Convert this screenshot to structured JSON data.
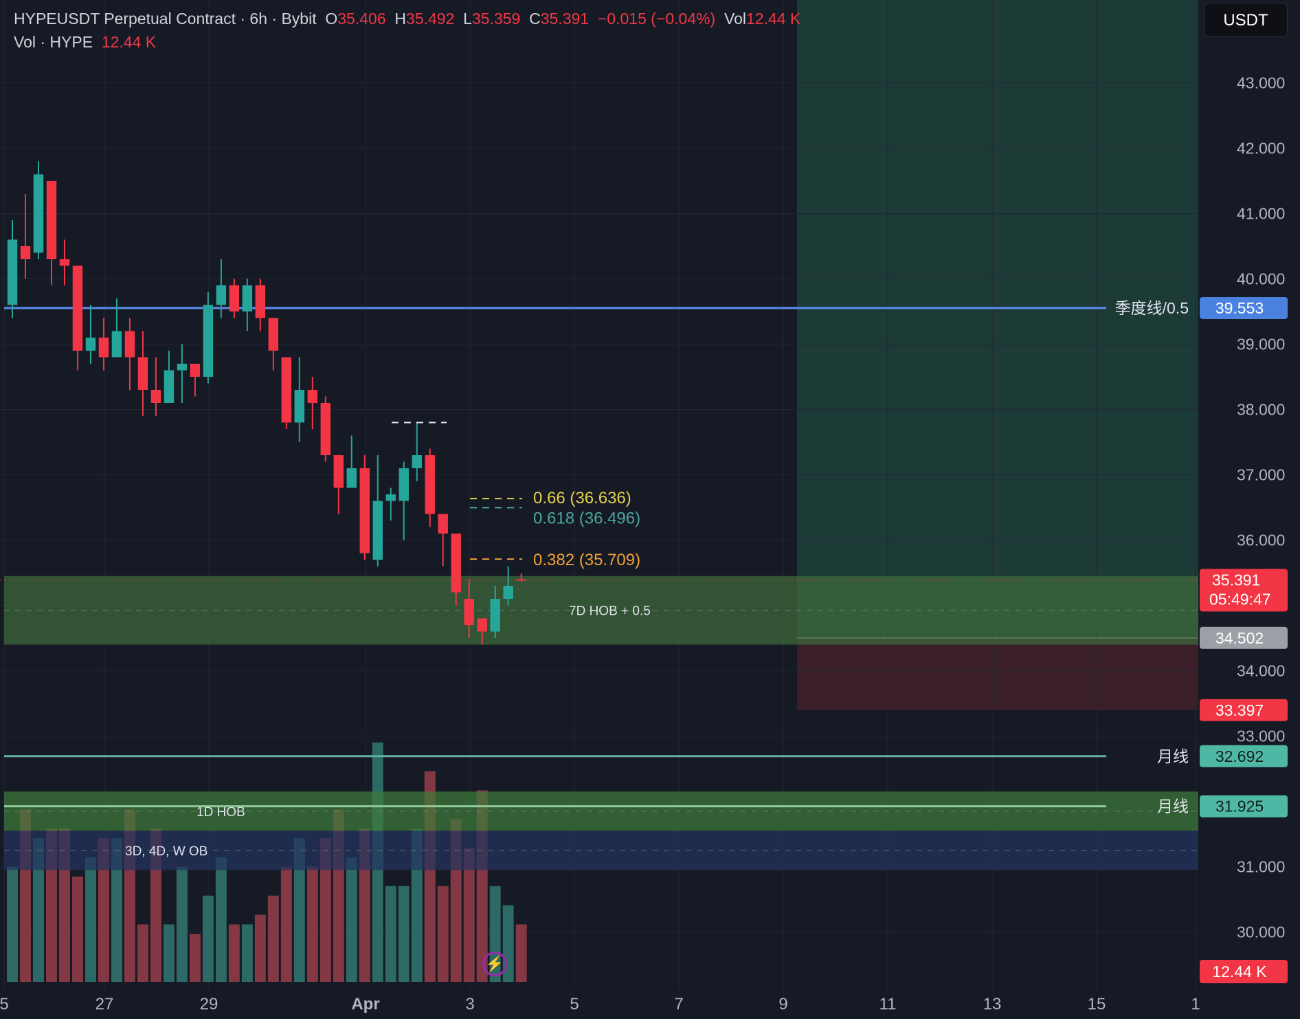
{
  "header": {
    "symbol": "HYPEUSDT Perpetual Contract · 6h · Bybit",
    "o_label": "O",
    "o_value": "35.406",
    "h_label": "H",
    "h_value": "35.492",
    "l_label": "L",
    "l_value": "35.359",
    "c_label": "C",
    "c_value": "35.391",
    "change": "−0.015 (−0.04%)",
    "vol_label": "Vol",
    "vol_value": "12.44 K",
    "vol_row_label": "Vol · HYPE",
    "vol_row_value": "12.44 K"
  },
  "currency_button": "USDT",
  "chart_data": {
    "type": "candlestick",
    "timeframe": "6h",
    "ylim": [
      29.2,
      44.3
    ],
    "y_ticks": [
      "43.000",
      "42.000",
      "41.000",
      "40.000",
      "39.000",
      "38.000",
      "37.000",
      "36.000",
      "35.000",
      "34.000",
      "33.000",
      "31.000",
      "30.000"
    ],
    "x_ticks": [
      "5",
      "27",
      "29",
      "Apr",
      "3",
      "5",
      "7",
      "9",
      "11",
      "13",
      "15",
      "1"
    ],
    "candles": [
      [
        39.6,
        40.6,
        40.9,
        39.4
      ],
      [
        40.5,
        40.3,
        41.3,
        40.0
      ],
      [
        40.4,
        41.6,
        41.8,
        40.3
      ],
      [
        41.5,
        40.3,
        41.5,
        39.9
      ],
      [
        40.3,
        40.2,
        40.6,
        39.9
      ],
      [
        40.2,
        38.9,
        40.2,
        38.6
      ],
      [
        38.9,
        39.1,
        39.6,
        38.7
      ],
      [
        39.1,
        38.8,
        39.4,
        38.6
      ],
      [
        38.8,
        39.2,
        39.7,
        38.8
      ],
      [
        39.2,
        38.8,
        39.4,
        38.3
      ],
      [
        38.8,
        38.3,
        39.2,
        37.9
      ],
      [
        38.3,
        38.1,
        38.8,
        37.9
      ],
      [
        38.1,
        38.6,
        38.9,
        38.1
      ],
      [
        38.6,
        38.7,
        39.0,
        38.1
      ],
      [
        38.7,
        38.5,
        38.7,
        38.2
      ],
      [
        38.5,
        39.6,
        39.8,
        38.4
      ],
      [
        39.6,
        39.9,
        40.3,
        39.4
      ],
      [
        39.9,
        39.5,
        40.0,
        39.4
      ],
      [
        39.5,
        39.9,
        40.0,
        39.2
      ],
      [
        39.9,
        39.4,
        40.0,
        39.2
      ],
      [
        39.4,
        38.9,
        39.3,
        38.6
      ],
      [
        38.8,
        37.8,
        38.8,
        37.7
      ],
      [
        37.8,
        38.3,
        38.8,
        37.5
      ],
      [
        38.3,
        38.1,
        38.5,
        37.7
      ],
      [
        38.1,
        37.3,
        38.2,
        37.2
      ],
      [
        37.3,
        36.8,
        37.3,
        36.4
      ],
      [
        36.8,
        37.1,
        37.6,
        36.9
      ],
      [
        37.1,
        35.8,
        37.3,
        35.7
      ],
      [
        35.7,
        36.6,
        37.3,
        35.6
      ],
      [
        36.6,
        36.7,
        36.8,
        36.3
      ],
      [
        36.6,
        37.1,
        37.2,
        36.0
      ],
      [
        37.1,
        37.3,
        37.8,
        36.9
      ],
      [
        37.3,
        36.4,
        37.4,
        36.2
      ],
      [
        36.4,
        36.1,
        36.3,
        35.6
      ],
      [
        36.1,
        35.2,
        36.1,
        35.0
      ],
      [
        35.1,
        34.7,
        35.4,
        34.5
      ],
      [
        34.8,
        34.6,
        34.7,
        34.4
      ],
      [
        34.6,
        35.1,
        35.3,
        34.5
      ],
      [
        35.1,
        35.3,
        35.6,
        35.0
      ],
      [
        35.4,
        35.39,
        35.49,
        35.36
      ]
    ],
    "volume_scale_max": 2.57,
    "volume": [
      1.2,
      1.8,
      1.5,
      1.6,
      1.6,
      1.1,
      1.3,
      1.5,
      1.5,
      1.8,
      0.6,
      1.6,
      0.6,
      1.2,
      0.5,
      0.9,
      1.3,
      0.6,
      0.6,
      0.7,
      0.9,
      1.2,
      1.5,
      1.2,
      1.5,
      1.8,
      1.3,
      1.6,
      2.5,
      1.0,
      1.0,
      1.6,
      2.2,
      1.0,
      1.7,
      1.4,
      2.0,
      1.0,
      0.8,
      0.6
    ],
    "current_price": "35.391",
    "countdown": "05:49:47",
    "volume_label": "12.44 K",
    "horizontal_lines": [
      {
        "label": "季度线/0.5",
        "value": 39.553,
        "tag": "39.553",
        "color": "#5b8def",
        "tag_bg": "#4b82e0"
      },
      {
        "label": "月线",
        "value": 32.692,
        "tag": "32.692",
        "color": "#63b1a4",
        "tag_bg": "#4fb8a4"
      },
      {
        "label": "月线",
        "value": 31.925,
        "tag": "31.925",
        "color": "#8fc99a",
        "tag_bg": "#4fb8a4"
      }
    ],
    "fib_levels": [
      {
        "text": "0.66 (36.636)",
        "value": 36.636,
        "color": "#e6d04a"
      },
      {
        "text": "0.618 (36.496)",
        "value": 36.496,
        "color": "#4aa7a0"
      },
      {
        "text": "0.382 (35.709)",
        "value": 35.709,
        "color": "#f0a13a"
      }
    ],
    "zones": [
      {
        "label": "7D HOB + 0.5",
        "from": 34.4,
        "to": 35.45,
        "color": "#3e6b3a"
      },
      {
        "label": "1D HOB",
        "from": 31.55,
        "to": 32.15,
        "color": "#3e7a3a"
      },
      {
        "label": "3D, 4D, W OB",
        "from": 30.95,
        "to": 31.55,
        "color": "#23335e"
      }
    ],
    "position": {
      "entry": 34.502,
      "entry_tag": "34.502",
      "stop": 33.397,
      "stop_tag": "33.397",
      "target": 44.3
    },
    "colors": {
      "up": "#26a69a",
      "down": "#f23645",
      "background": "#161a25",
      "grid": "#232734"
    }
  }
}
